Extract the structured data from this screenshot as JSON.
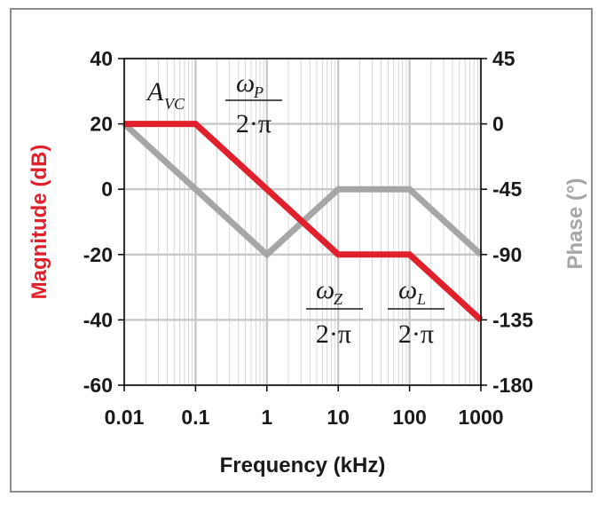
{
  "colors": {
    "magnitude": "#e0202a",
    "phase": "#a6a6a6",
    "grid": "#c8c8c8",
    "axis": "#000000",
    "text": "#1a1a1a"
  },
  "chart_data": {
    "type": "line",
    "x_scale": "log",
    "xlabel": "Frequency (kHz)",
    "ylabel": "Magnitude (dB)",
    "y2label": "Phase (°)",
    "xlim": [
      0.01,
      1000
    ],
    "ylim": [
      -60,
      40
    ],
    "y2lim": [
      -180,
      45
    ],
    "x_ticks": [
      "0.01",
      "0.1",
      "1",
      "10",
      "100",
      "1000"
    ],
    "y_ticks": [
      "40",
      "20",
      "0",
      "-20",
      "-40",
      "-60"
    ],
    "y2_ticks": [
      "45",
      "0",
      "-45",
      "-90",
      "-135",
      "-180"
    ],
    "grid": true,
    "series": [
      {
        "name": "Magnitude (dB)",
        "axis": "left",
        "color": "#e0202a",
        "x": [
          0.01,
          0.1,
          10,
          100,
          1000
        ],
        "y": [
          20,
          20,
          -20,
          -20,
          -40
        ]
      },
      {
        "name": "Phase (°)",
        "axis": "right",
        "color": "#a6a6a6",
        "x": [
          0.01,
          1,
          10,
          100,
          1000
        ],
        "y": [
          0,
          -90,
          -45,
          -45,
          -90
        ]
      }
    ],
    "annotations": {
      "a_vc": {
        "main": "A",
        "sub": "VC"
      },
      "omega_p": {
        "numer": "ω",
        "sub": "P",
        "denom": "2·π"
      },
      "omega_z": {
        "numer": "ω",
        "sub": "Z",
        "denom": "2·π"
      },
      "omega_l": {
        "numer": "ω",
        "sub": "L",
        "denom": "2·π"
      }
    }
  }
}
